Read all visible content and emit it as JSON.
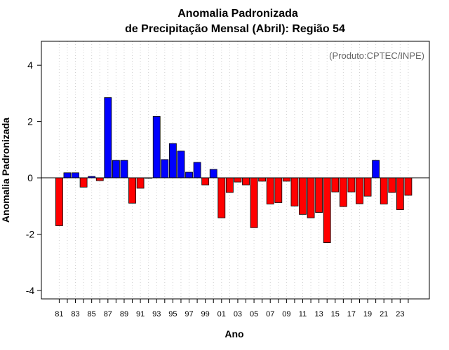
{
  "chart_data": {
    "type": "bar",
    "title": "Anomalia Padronizada",
    "subtitle": "de Precipitação Mensal (Abril): Região 54",
    "xlabel": "Ano",
    "ylabel": "Anomalia Padronizada",
    "annotation": "(Produto:CPTEC/INPE)",
    "ylim": [
      -4.3,
      4.85
    ],
    "yticks": [
      "-4",
      "-2",
      "0",
      "2",
      "4"
    ],
    "grid": "vertical dotted",
    "positive_color": "#0000ff",
    "negative_color": "#ff0000",
    "categories": [
      "81",
      "82",
      "83",
      "84",
      "85",
      "86",
      "87",
      "88",
      "89",
      "90",
      "91",
      "92",
      "93",
      "94",
      "95",
      "96",
      "97",
      "98",
      "99",
      "00",
      "01",
      "02",
      "03",
      "04",
      "05",
      "06",
      "07",
      "08",
      "09",
      "10",
      "11",
      "12",
      "13",
      "14",
      "15",
      "16",
      "17",
      "18",
      "19",
      "20",
      "21",
      "22",
      "23",
      "24"
    ],
    "xtick_labels": [
      "81",
      "83",
      "85",
      "87",
      "89",
      "91",
      "93",
      "95",
      "97",
      "99",
      "01",
      "03",
      "05",
      "07",
      "09",
      "11",
      "13",
      "15",
      "17",
      "19",
      "21",
      "23"
    ],
    "values": [
      -1.7,
      0.18,
      0.18,
      -0.33,
      0.05,
      -0.1,
      2.85,
      0.62,
      0.62,
      -0.9,
      -0.37,
      0.0,
      2.18,
      0.65,
      1.22,
      0.95,
      0.2,
      0.55,
      -0.25,
      0.3,
      -1.42,
      -0.52,
      -0.15,
      -0.25,
      -1.77,
      -0.12,
      -0.93,
      -0.88,
      -0.12,
      -1.0,
      -1.3,
      -1.42,
      -1.23,
      -2.3,
      -0.5,
      -1.02,
      -0.5,
      -0.92,
      -0.65,
      0.62,
      -0.93,
      -0.52,
      -1.13,
      -0.62
    ]
  }
}
